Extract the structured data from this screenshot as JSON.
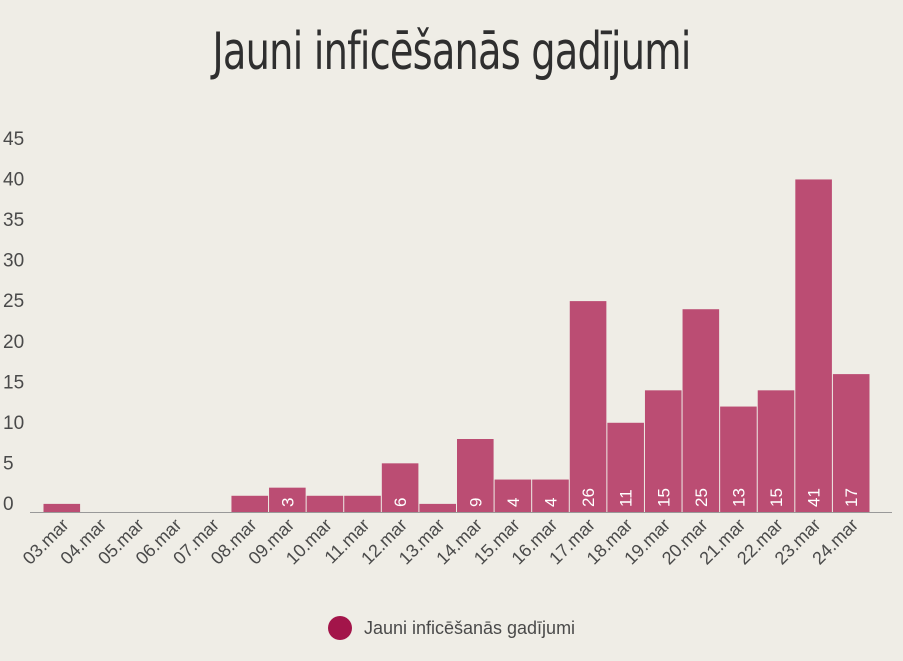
{
  "chart_data": {
    "type": "bar",
    "title": "Jauni inficēšanās gadījumi",
    "categories": [
      "03.mar",
      "04.mar",
      "05.mar",
      "06.mar",
      "07.mar",
      "08.mar",
      "09.mar",
      "10.mar",
      "11.mar",
      "12.mar",
      "13.mar",
      "14.mar",
      "15.mar",
      "16.mar",
      "17.mar",
      "18.mar",
      "19.mar",
      "20.mar",
      "21.mar",
      "22.mar",
      "23.mar",
      "24.mar"
    ],
    "series": [
      {
        "name": "Jauni inficēšanās gadījumi",
        "values": [
          1,
          0,
          0,
          0,
          0,
          2,
          3,
          2,
          2,
          6,
          1,
          9,
          4,
          4,
          26,
          11,
          15,
          25,
          13,
          15,
          41,
          17
        ],
        "data_labels": [
          "",
          "",
          "",
          "",
          "",
          "",
          "3",
          "",
          "",
          "6",
          "",
          "9",
          "4",
          "4",
          "26",
          "11",
          "15",
          "25",
          "13",
          "15",
          "41",
          "17"
        ]
      }
    ],
    "y_ticks": [
      "0",
      "5",
      "10",
      "15",
      "20",
      "25",
      "30",
      "35",
      "40",
      "45"
    ],
    "ylim": [
      0,
      45
    ],
    "legend_position": "bottom",
    "grid": false,
    "colors": {
      "bar": "#bb4d73",
      "legend_swatch": "#a3154a",
      "axis": "#999999"
    }
  }
}
